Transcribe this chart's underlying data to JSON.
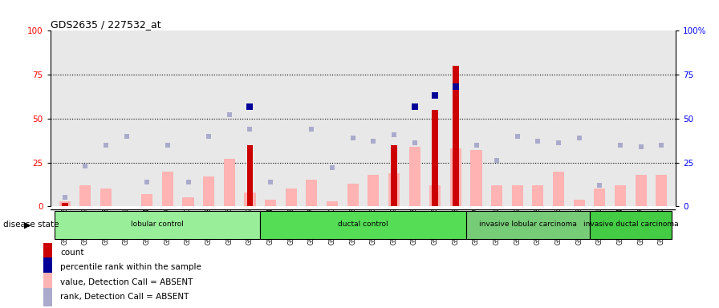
{
  "title": "GDS2635 / 227532_at",
  "samples": [
    "GSM134586",
    "GSM134589",
    "GSM134688",
    "GSM134691",
    "GSM134694",
    "GSM134697",
    "GSM134700",
    "GSM134703",
    "GSM134706",
    "GSM134709",
    "GSM134584",
    "GSM134588",
    "GSM134687",
    "GSM134690",
    "GSM134693",
    "GSM134696",
    "GSM134699",
    "GSM134702",
    "GSM134705",
    "GSM134708",
    "GSM134587",
    "GSM134591",
    "GSM134689",
    "GSM134692",
    "GSM134695",
    "GSM134698",
    "GSM134701",
    "GSM134704",
    "GSM134707",
    "GSM134710"
  ],
  "groups": [
    {
      "label": "lobular control",
      "start": 0,
      "end": 10,
      "color": "#99ee99"
    },
    {
      "label": "ductal control",
      "start": 10,
      "end": 20,
      "color": "#55dd55"
    },
    {
      "label": "invasive lobular carcinoma",
      "start": 20,
      "end": 26,
      "color": "#77cc77"
    },
    {
      "label": "invasive ductal carcinoma",
      "start": 26,
      "end": 30,
      "color": "#44cc44"
    }
  ],
  "count_values": [
    2,
    0,
    0,
    0,
    0,
    0,
    0,
    0,
    0,
    35,
    0,
    0,
    0,
    0,
    0,
    0,
    35,
    0,
    55,
    80,
    0,
    0,
    0,
    0,
    0,
    0,
    0,
    0,
    0,
    0
  ],
  "percentile_values": [
    0,
    0,
    0,
    0,
    0,
    0,
    0,
    0,
    0,
    57,
    0,
    0,
    0,
    0,
    0,
    0,
    0,
    57,
    63,
    68,
    0,
    0,
    0,
    0,
    0,
    0,
    0,
    0,
    0,
    0
  ],
  "value_absent": [
    3,
    12,
    10,
    0,
    7,
    20,
    5,
    17,
    27,
    8,
    4,
    10,
    15,
    3,
    13,
    18,
    19,
    34,
    12,
    33,
    32,
    12,
    12,
    12,
    20,
    4,
    10,
    12,
    18,
    18
  ],
  "rank_absent": [
    5,
    23,
    35,
    40,
    14,
    35,
    14,
    40,
    52,
    44,
    14,
    0,
    44,
    22,
    39,
    37,
    41,
    36,
    30,
    55,
    35,
    26,
    40,
    37,
    36,
    39,
    12,
    35,
    34,
    35
  ],
  "dotted_lines": [
    25,
    50,
    75
  ],
  "plot_bg": "#e8e8e8",
  "fig_bg": "#ffffff",
  "count_color": "#cc0000",
  "pct_color": "#000099",
  "value_absent_color": "#ffb3b3",
  "rank_absent_color": "#aaaacc"
}
